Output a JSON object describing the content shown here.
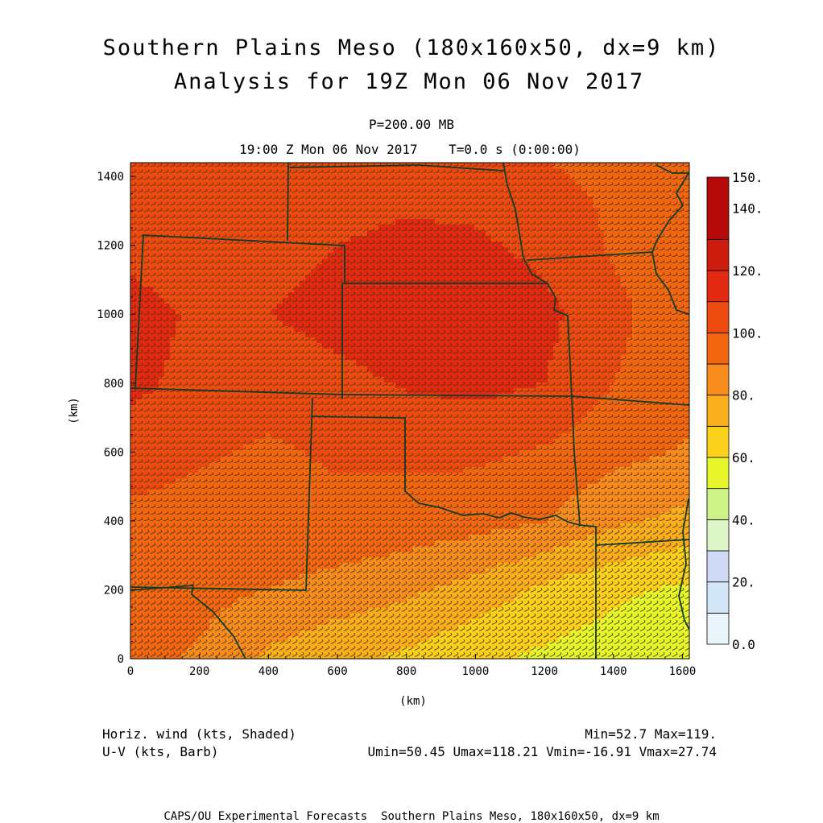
{
  "title": {
    "line1": "Southern Plains Meso (180x160x50, dx=9 km)",
    "line2": "Analysis for 19Z Mon 06 Nov 2017"
  },
  "subtitle": {
    "level": "P=200.00 MB",
    "time": "19:00 Z Mon 06 Nov 2017    T=0.0 s (0:00:00)"
  },
  "footer": {
    "field1": "Horiz. wind (kts, Shaded)",
    "field2": "U-V (kts, Barb)",
    "stats1": "Min=52.7 Max=119.",
    "stats2": "Umin=50.45 Umax=118.21 Vmin=-16.91 Vmax=27.74",
    "credit": "CAPS/OU Experimental Forecasts  Southern Plains Meso, 180x160x50, dx=9 km"
  },
  "chart_data": {
    "type": "heatmap",
    "xlabel": "(km)",
    "ylabel": "(km)",
    "xlim": [
      0,
      1620
    ],
    "ylim": [
      0,
      1440
    ],
    "xticks": [
      "0",
      "200",
      "400",
      "600",
      "800",
      "1000",
      "1200",
      "1400",
      "1600"
    ],
    "yticks": [
      "0",
      "200",
      "400",
      "600",
      "800",
      "1000",
      "1200",
      "1400"
    ],
    "colorbar": {
      "labels": [
        "0.0",
        "20.",
        "40.",
        "60.",
        "80.",
        "100.",
        "120.",
        "140.",
        "150."
      ],
      "colors": [
        "#e9f5fb",
        "#d2e6f7",
        "#d0daf5",
        "#dcf6c8",
        "#cdf388",
        "#e7f62a",
        "#fcd11c",
        "#fbae1c",
        "#f78b1b",
        "#f2660f",
        "#ed4a10",
        "#e22a10",
        "#cd1b0e",
        "#b30a08"
      ]
    },
    "wind_speed_kts": {
      "min": 52.7,
      "max": 119,
      "grid_x_km": [
        0,
        200,
        400,
        600,
        800,
        1000,
        1200,
        1400,
        1620
      ],
      "grid_y_km": [
        0,
        200,
        400,
        600,
        800,
        1000,
        1200,
        1440
      ],
      "values": [
        [
          92,
          89,
          78,
          72,
          68,
          62,
          58,
          55,
          53
        ],
        [
          95,
          93,
          90,
          86,
          82,
          76,
          68,
          62,
          58
        ],
        [
          98,
          97,
          97,
          98,
          96,
          94,
          90,
          82,
          77
        ],
        [
          104,
          101,
          99,
          101,
          102,
          102,
          99,
          93,
          89
        ],
        [
          113,
          106,
          103,
          107,
          111,
          113,
          110,
          100,
          94
        ],
        [
          115,
          108,
          110,
          114,
          117,
          118,
          113,
          102,
          95
        ],
        [
          106,
          103,
          106,
          110,
          113,
          112,
          107,
          99,
          95
        ],
        [
          100,
          102,
          103,
          102,
          104,
          103,
          100,
          98,
          97
        ]
      ]
    },
    "u_v_barbs": {
      "umin": 50.45,
      "umax": 118.21,
      "vmin": -16.91,
      "vmax": 27.74
    }
  }
}
